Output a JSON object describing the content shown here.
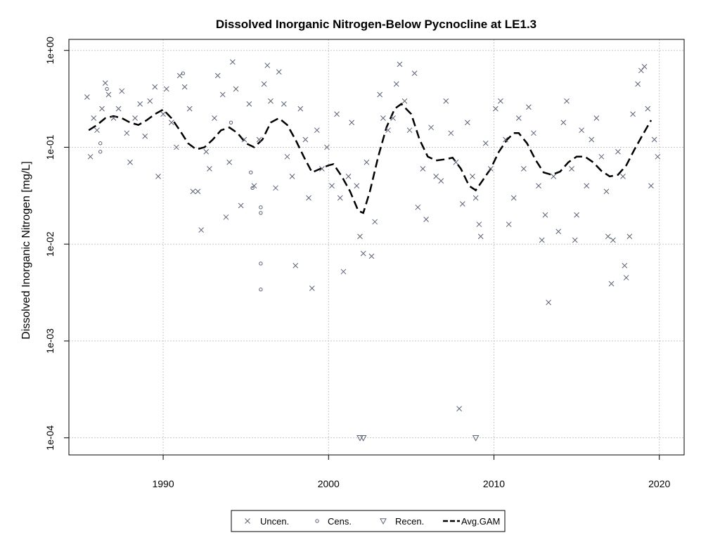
{
  "chart_data": {
    "type": "scatter",
    "title": "Dissolved Inorganic Nitrogen-Below Pycnocline at LE1.3",
    "xlabel": "",
    "ylabel": "Dissolved Inorganic Nitrogen [mg/L]",
    "y_scale": "log",
    "xlim": [
      1984.3,
      2021.5
    ],
    "ylim": [
      6.66e-05,
      1.3
    ],
    "x_ticks": [
      1990,
      2000,
      2010,
      2020
    ],
    "x_tick_labels": [
      "1990",
      "2000",
      "2010",
      "2020"
    ],
    "y_ticks": [
      0.0001,
      0.001,
      0.01,
      0.1,
      1
    ],
    "y_tick_labels": [
      "1e-04",
      "1e-03",
      "1e-02",
      "1e-01",
      "1e+00"
    ],
    "grid": true,
    "legend_position": "bottom",
    "legend": [
      {
        "label": "Uncen.",
        "marker": "x"
      },
      {
        "label": "Cens.",
        "marker": "circle"
      },
      {
        "label": "Recen.",
        "marker": "triangle-down"
      },
      {
        "label": "Avg.GAM",
        "marker": "dashed-line"
      }
    ],
    "colors": {
      "points": "#5a6273",
      "gam": "#000000",
      "grid": "#c8c8c8"
    },
    "series": [
      {
        "name": "Uncen.",
        "marker": "x",
        "points": [
          [
            1985.4,
            0.33
          ],
          [
            1985.6,
            0.08
          ],
          [
            1985.8,
            0.2
          ],
          [
            1986.0,
            0.15
          ],
          [
            1986.3,
            0.25
          ],
          [
            1986.5,
            0.46
          ],
          [
            1986.7,
            0.35
          ],
          [
            1987.0,
            0.2
          ],
          [
            1987.3,
            0.25
          ],
          [
            1987.5,
            0.38
          ],
          [
            1987.8,
            0.14
          ],
          [
            1988.0,
            0.07
          ],
          [
            1988.3,
            0.2
          ],
          [
            1988.6,
            0.28
          ],
          [
            1988.9,
            0.13
          ],
          [
            1989.2,
            0.3
          ],
          [
            1989.5,
            0.42
          ],
          [
            1989.7,
            0.05
          ],
          [
            1990.0,
            0.22
          ],
          [
            1990.2,
            0.4
          ],
          [
            1990.5,
            0.18
          ],
          [
            1990.8,
            0.1
          ],
          [
            1991.0,
            0.55
          ],
          [
            1991.3,
            0.42
          ],
          [
            1991.6,
            0.25
          ],
          [
            1991.8,
            0.035
          ],
          [
            1992.1,
            0.035
          ],
          [
            1992.3,
            0.014
          ],
          [
            1992.6,
            0.09
          ],
          [
            1992.8,
            0.06
          ],
          [
            1993.1,
            0.2
          ],
          [
            1993.3,
            0.55
          ],
          [
            1993.6,
            0.35
          ],
          [
            1993.8,
            0.019
          ],
          [
            1994.0,
            0.07
          ],
          [
            1994.2,
            0.76
          ],
          [
            1994.4,
            0.4
          ],
          [
            1994.7,
            0.025
          ],
          [
            1994.9,
            0.12
          ],
          [
            1995.2,
            0.28
          ],
          [
            1995.5,
            0.04
          ],
          [
            1995.8,
            0.12
          ],
          [
            1996.1,
            0.45
          ],
          [
            1996.3,
            0.7
          ],
          [
            1996.5,
            0.3
          ],
          [
            1996.8,
            0.038
          ],
          [
            1997.0,
            0.6
          ],
          [
            1997.3,
            0.28
          ],
          [
            1997.5,
            0.08
          ],
          [
            1997.8,
            0.05
          ],
          [
            1998.0,
            0.006
          ],
          [
            1998.3,
            0.25
          ],
          [
            1998.6,
            0.12
          ],
          [
            1998.8,
            0.03
          ],
          [
            1999.0,
            0.0035
          ],
          [
            1999.3,
            0.15
          ],
          [
            1999.6,
            0.06
          ],
          [
            1999.9,
            0.1
          ],
          [
            2000.2,
            0.04
          ],
          [
            2000.5,
            0.22
          ],
          [
            2000.7,
            0.03
          ],
          [
            2000.9,
            0.0052
          ],
          [
            2001.2,
            0.05
          ],
          [
            2001.4,
            0.18
          ],
          [
            2001.7,
            0.04
          ],
          [
            2001.9,
            0.012
          ],
          [
            2002.1,
            0.008
          ],
          [
            2002.3,
            0.07
          ],
          [
            2002.6,
            0.0075
          ],
          [
            2002.8,
            0.017
          ],
          [
            2003.1,
            0.35
          ],
          [
            2003.3,
            0.2
          ],
          [
            2003.6,
            0.15
          ],
          [
            2003.9,
            0.2
          ],
          [
            2004.1,
            0.45
          ],
          [
            2004.3,
            0.72
          ],
          [
            2004.6,
            0.3
          ],
          [
            2004.9,
            0.15
          ],
          [
            2005.2,
            0.58
          ],
          [
            2005.4,
            0.024
          ],
          [
            2005.7,
            0.06
          ],
          [
            2005.9,
            0.018
          ],
          [
            2006.2,
            0.16
          ],
          [
            2006.5,
            0.05
          ],
          [
            2006.8,
            0.045
          ],
          [
            2007.1,
            0.3
          ],
          [
            2007.4,
            0.14
          ],
          [
            2007.7,
            0.07
          ],
          [
            2007.9,
            0.0002
          ],
          [
            2008.1,
            0.026
          ],
          [
            2008.4,
            0.18
          ],
          [
            2008.7,
            0.05
          ],
          [
            2008.9,
            0.03
          ],
          [
            2009.1,
            0.016
          ],
          [
            2009.2,
            0.012
          ],
          [
            2009.5,
            0.11
          ],
          [
            2009.8,
            0.06
          ],
          [
            2010.1,
            0.25
          ],
          [
            2010.4,
            0.3
          ],
          [
            2010.7,
            0.12
          ],
          [
            2010.9,
            0.016
          ],
          [
            2011.2,
            0.03
          ],
          [
            2011.5,
            0.2
          ],
          [
            2011.8,
            0.06
          ],
          [
            2012.1,
            0.26
          ],
          [
            2012.4,
            0.14
          ],
          [
            2012.7,
            0.04
          ],
          [
            2012.9,
            0.011
          ],
          [
            2013.1,
            0.02
          ],
          [
            2013.3,
            0.0025
          ],
          [
            2013.6,
            0.05
          ],
          [
            2013.9,
            0.0135
          ],
          [
            2014.2,
            0.18
          ],
          [
            2014.4,
            0.3
          ],
          [
            2014.7,
            0.06
          ],
          [
            2014.9,
            0.011
          ],
          [
            2015.0,
            0.02
          ],
          [
            2015.3,
            0.15
          ],
          [
            2015.6,
            0.04
          ],
          [
            2015.9,
            0.12
          ],
          [
            2016.2,
            0.2
          ],
          [
            2016.5,
            0.08
          ],
          [
            2016.8,
            0.035
          ],
          [
            2016.9,
            0.012
          ],
          [
            2017.1,
            0.0039
          ],
          [
            2017.2,
            0.011
          ],
          [
            2017.5,
            0.09
          ],
          [
            2017.8,
            0.05
          ],
          [
            2017.9,
            0.006
          ],
          [
            2018.0,
            0.0045
          ],
          [
            2018.2,
            0.012
          ],
          [
            2018.4,
            0.22
          ],
          [
            2018.7,
            0.45
          ],
          [
            2018.9,
            0.62
          ],
          [
            2019.1,
            0.68
          ],
          [
            2019.3,
            0.25
          ],
          [
            2019.5,
            0.04
          ],
          [
            2019.7,
            0.12
          ],
          [
            2019.9,
            0.08
          ]
        ]
      },
      {
        "name": "Cens.",
        "marker": "circle",
        "points": [
          [
            1986.2,
            0.09
          ],
          [
            1986.2,
            0.11
          ],
          [
            1986.6,
            0.4
          ],
          [
            1991.2,
            0.58
          ],
          [
            1994.1,
            0.18
          ],
          [
            1995.3,
            0.055
          ],
          [
            1995.4,
            0.038
          ],
          [
            1995.9,
            0.024
          ],
          [
            1995.9,
            0.021
          ],
          [
            1995.9,
            0.0063
          ],
          [
            1995.9,
            0.0034
          ]
        ]
      },
      {
        "name": "Recen.",
        "marker": "triangle-down",
        "points": [
          [
            2001.9,
            0.0001
          ],
          [
            2002.1,
            0.0001
          ],
          [
            2008.9,
            0.0001
          ]
        ]
      },
      {
        "name": "Avg.GAM",
        "marker": "dashed-line",
        "points": [
          [
            1985.5,
            0.15
          ],
          [
            1986.0,
            0.17
          ],
          [
            1986.5,
            0.2
          ],
          [
            1987.0,
            0.21
          ],
          [
            1987.5,
            0.2
          ],
          [
            1988.0,
            0.18
          ],
          [
            1988.5,
            0.17
          ],
          [
            1989.0,
            0.19
          ],
          [
            1989.5,
            0.22
          ],
          [
            1990.0,
            0.245
          ],
          [
            1990.5,
            0.2
          ],
          [
            1991.0,
            0.15
          ],
          [
            1991.5,
            0.11
          ],
          [
            1992.0,
            0.095
          ],
          [
            1992.5,
            0.1
          ],
          [
            1993.0,
            0.12
          ],
          [
            1993.5,
            0.15
          ],
          [
            1994.0,
            0.16
          ],
          [
            1994.5,
            0.14
          ],
          [
            1995.0,
            0.11
          ],
          [
            1995.5,
            0.1
          ],
          [
            1996.0,
            0.12
          ],
          [
            1996.5,
            0.18
          ],
          [
            1997.0,
            0.2
          ],
          [
            1997.5,
            0.17
          ],
          [
            1998.0,
            0.12
          ],
          [
            1998.5,
            0.08
          ],
          [
            1999.0,
            0.055
          ],
          [
            1999.5,
            0.06
          ],
          [
            2000.0,
            0.065
          ],
          [
            2000.3,
            0.067
          ],
          [
            2000.8,
            0.05
          ],
          [
            2001.3,
            0.035
          ],
          [
            2001.8,
            0.022
          ],
          [
            2002.1,
            0.021
          ],
          [
            2002.5,
            0.035
          ],
          [
            2003.0,
            0.08
          ],
          [
            2003.5,
            0.16
          ],
          [
            2004.0,
            0.25
          ],
          [
            2004.4,
            0.28
          ],
          [
            2005.0,
            0.22
          ],
          [
            2005.5,
            0.12
          ],
          [
            2006.0,
            0.08
          ],
          [
            2006.5,
            0.073
          ],
          [
            2007.0,
            0.075
          ],
          [
            2007.5,
            0.078
          ],
          [
            2008.0,
            0.06
          ],
          [
            2008.5,
            0.04
          ],
          [
            2008.9,
            0.036
          ],
          [
            2009.3,
            0.045
          ],
          [
            2009.8,
            0.06
          ],
          [
            2010.3,
            0.09
          ],
          [
            2010.8,
            0.12
          ],
          [
            2011.2,
            0.14
          ],
          [
            2011.5,
            0.14
          ],
          [
            2012.0,
            0.11
          ],
          [
            2012.5,
            0.075
          ],
          [
            2013.0,
            0.055
          ],
          [
            2013.5,
            0.052
          ],
          [
            2014.0,
            0.056
          ],
          [
            2014.5,
            0.07
          ],
          [
            2015.0,
            0.08
          ],
          [
            2015.5,
            0.08
          ],
          [
            2016.0,
            0.07
          ],
          [
            2016.5,
            0.057
          ],
          [
            2017.0,
            0.05
          ],
          [
            2017.5,
            0.052
          ],
          [
            2018.0,
            0.065
          ],
          [
            2018.5,
            0.095
          ],
          [
            2019.0,
            0.135
          ],
          [
            2019.5,
            0.19
          ]
        ]
      }
    ]
  }
}
